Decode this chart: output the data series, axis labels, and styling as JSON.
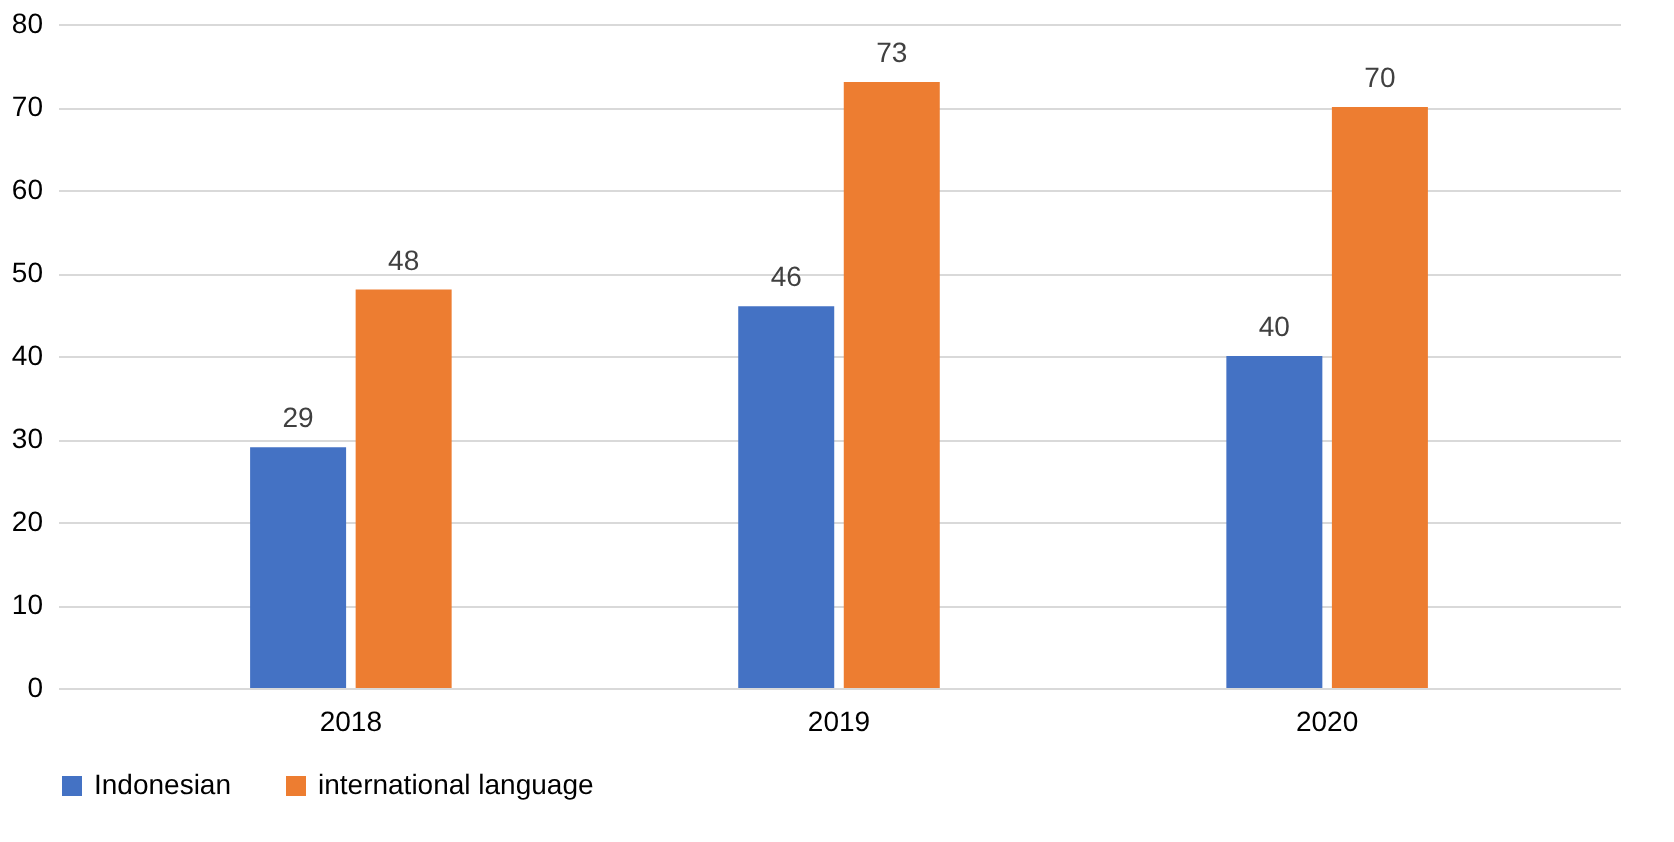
{
  "chart_data": {
    "type": "bar",
    "categories": [
      "2018",
      "2019",
      "2020"
    ],
    "series": [
      {
        "name": "Indonesian",
        "color": "#4472c4",
        "values": [
          29,
          46,
          40
        ]
      },
      {
        "name": "international language",
        "color": "#ed7d31",
        "values": [
          48,
          73,
          70
        ]
      }
    ],
    "ylim": [
      0,
      80
    ],
    "yticks": [
      0,
      10,
      20,
      30,
      40,
      50,
      60,
      70,
      80
    ],
    "grid": "y",
    "legend": "bottom",
    "data_labels": true
  }
}
